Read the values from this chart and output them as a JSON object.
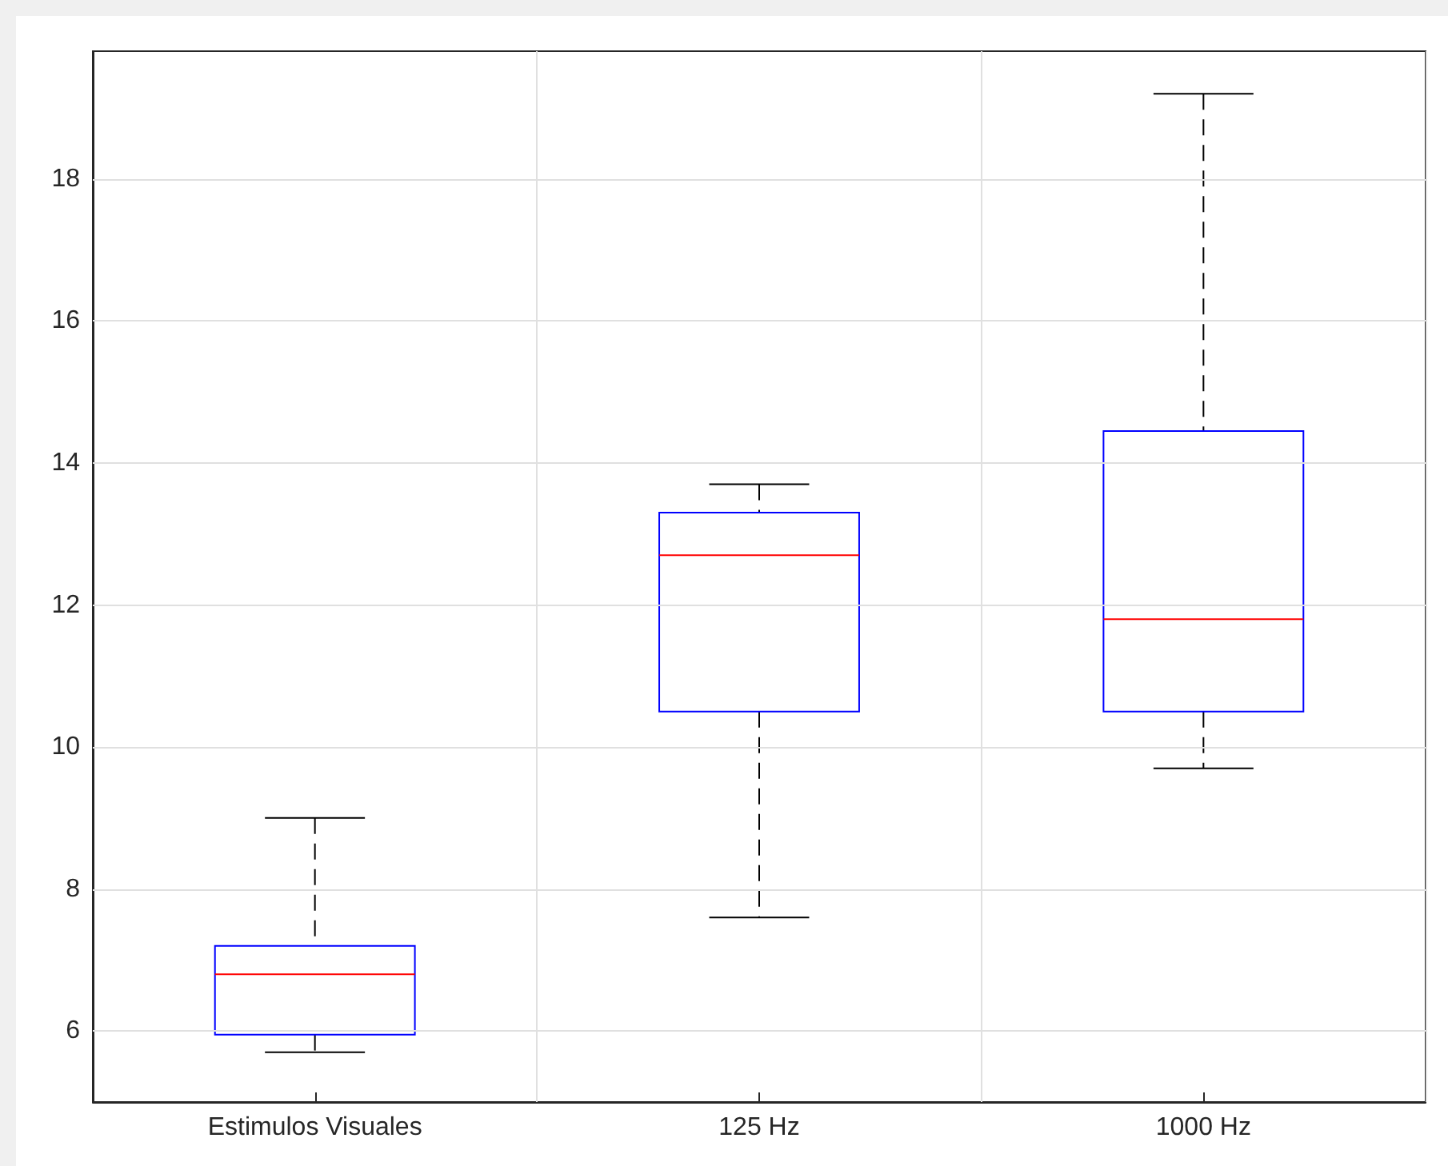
{
  "chart_data": {
    "type": "box",
    "categories": [
      "Estimulos Visuales",
      "125 Hz",
      "1000 Hz"
    ],
    "boxes": [
      {
        "low": 5.7,
        "q1": 5.95,
        "median": 6.8,
        "q3": 7.2,
        "high": 9.0
      },
      {
        "low": 7.6,
        "q1": 10.5,
        "median": 12.7,
        "q3": 13.3,
        "high": 13.7
      },
      {
        "low": 9.7,
        "q1": 10.5,
        "median": 11.8,
        "q3": 14.45,
        "high": 19.2
      }
    ],
    "color": "#0000ff",
    "ylim": [
      5,
      19.8
    ],
    "yticks": [
      6,
      8,
      10,
      12,
      14,
      16,
      18
    ],
    "grid": true
  }
}
